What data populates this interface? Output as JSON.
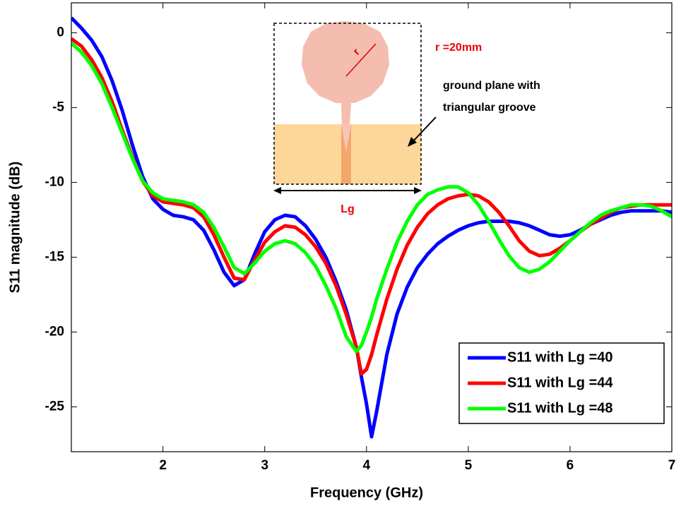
{
  "chart_data": {
    "type": "line",
    "xlabel": "Frequency (GHz)",
    "ylabel": "S11 magnitude (dB)",
    "xlim": [
      1.1,
      7
    ],
    "ylim": [
      -28,
      2
    ],
    "xticks": [
      2,
      3,
      4,
      5,
      6,
      7
    ],
    "yticks": [
      0,
      -5,
      -10,
      -15,
      -20,
      -25
    ],
    "legend": "lower right",
    "x": [
      1.1,
      1.2,
      1.3,
      1.4,
      1.5,
      1.6,
      1.7,
      1.8,
      1.9,
      2.0,
      2.1,
      2.2,
      2.3,
      2.4,
      2.5,
      2.6,
      2.7,
      2.8,
      2.9,
      3.0,
      3.1,
      3.2,
      3.3,
      3.4,
      3.5,
      3.6,
      3.7,
      3.8,
      3.9,
      3.95,
      4.0,
      4.05,
      4.1,
      4.2,
      4.3,
      4.4,
      4.5,
      4.6,
      4.7,
      4.8,
      4.9,
      5.0,
      5.1,
      5.2,
      5.3,
      5.4,
      5.5,
      5.6,
      5.7,
      5.8,
      5.9,
      6.0,
      6.1,
      6.2,
      6.3,
      6.4,
      6.5,
      6.6,
      6.7,
      6.8,
      6.9,
      7.0
    ],
    "series": [
      {
        "name": "S11 with Lg =40",
        "color": "#0000ff",
        "values": [
          1.0,
          0.3,
          -0.5,
          -1.6,
          -3.2,
          -5.2,
          -7.5,
          -9.6,
          -11.1,
          -11.8,
          -12.2,
          -12.3,
          -12.5,
          -13.2,
          -14.5,
          -16.0,
          -16.9,
          -16.5,
          -14.8,
          -13.3,
          -12.5,
          -12.2,
          -12.3,
          -12.9,
          -13.8,
          -15.0,
          -16.6,
          -18.5,
          -21.0,
          -23.0,
          -24.8,
          -27.0,
          -25.3,
          -21.5,
          -18.8,
          -17.0,
          -15.7,
          -14.8,
          -14.1,
          -13.6,
          -13.2,
          -12.9,
          -12.7,
          -12.6,
          -12.6,
          -12.6,
          -12.7,
          -12.9,
          -13.2,
          -13.5,
          -13.6,
          -13.5,
          -13.2,
          -12.8,
          -12.5,
          -12.2,
          -12.0,
          -11.9,
          -11.9,
          -11.9,
          -11.9,
          -12.0
        ]
      },
      {
        "name": "S11 with Lg =44",
        "color": "#ff0000",
        "values": [
          -0.4,
          -0.9,
          -1.8,
          -3.0,
          -4.6,
          -6.5,
          -8.3,
          -9.9,
          -10.9,
          -11.3,
          -11.4,
          -11.5,
          -11.7,
          -12.3,
          -13.5,
          -15.0,
          -16.4,
          -16.5,
          -15.2,
          -14.0,
          -13.3,
          -12.9,
          -13.0,
          -13.5,
          -14.3,
          -15.4,
          -16.9,
          -18.8,
          -21.0,
          -22.8,
          -22.5,
          -21.5,
          -20.2,
          -17.8,
          -15.8,
          -14.2,
          -13.0,
          -12.1,
          -11.5,
          -11.1,
          -10.9,
          -10.8,
          -10.9,
          -11.3,
          -12.0,
          -12.9,
          -13.9,
          -14.6,
          -14.9,
          -14.8,
          -14.4,
          -13.9,
          -13.3,
          -12.8,
          -12.4,
          -12.0,
          -11.7,
          -11.6,
          -11.5,
          -11.5,
          -11.5,
          -11.5
        ]
      },
      {
        "name": "S11 with Lg =48",
        "color": "#00ff00",
        "values": [
          -0.7,
          -1.3,
          -2.2,
          -3.4,
          -5.0,
          -6.7,
          -8.4,
          -9.9,
          -10.7,
          -11.1,
          -11.2,
          -11.3,
          -11.5,
          -12.0,
          -13.0,
          -14.3,
          -15.7,
          -16.1,
          -15.4,
          -14.6,
          -14.1,
          -13.9,
          -14.1,
          -14.7,
          -15.6,
          -16.9,
          -18.4,
          -20.3,
          -21.3,
          -20.9,
          -20.0,
          -19.0,
          -17.8,
          -15.8,
          -14.0,
          -12.6,
          -11.5,
          -10.8,
          -10.5,
          -10.3,
          -10.3,
          -10.7,
          -11.5,
          -12.6,
          -13.8,
          -14.9,
          -15.7,
          -16.0,
          -15.8,
          -15.3,
          -14.6,
          -13.9,
          -13.3,
          -12.7,
          -12.2,
          -11.9,
          -11.7,
          -11.5,
          -11.5,
          -11.6,
          -11.9,
          -12.3
        ]
      }
    ],
    "inset": {
      "r_label": "r",
      "radius_label": "r =20mm",
      "ground_label": [
        "ground plane with",
        "triangular groove"
      ],
      "width_label": "Lg"
    }
  }
}
